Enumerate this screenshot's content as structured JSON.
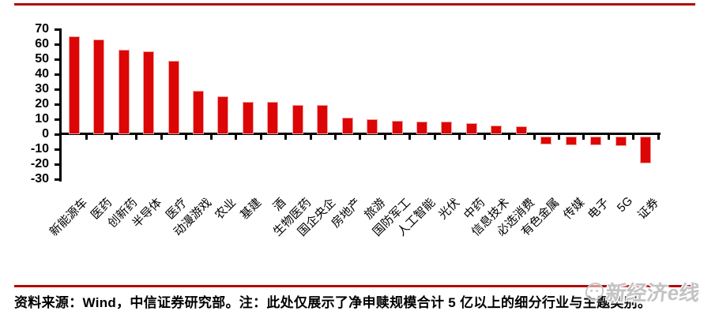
{
  "page": {
    "background": "#ffffff"
  },
  "rules": {
    "color": "#b00807"
  },
  "chart_data": {
    "type": "bar",
    "title": "",
    "xlabel": "",
    "ylabel": "",
    "categories": [
      "新能源车",
      "医药",
      "创新药",
      "半导体",
      "医疗",
      "动漫游戏",
      "农业",
      "基建",
      "酒",
      "生物医药",
      "国企央企",
      "房地产",
      "旅游",
      "国防军工",
      "人工智能",
      "光伏",
      "中药",
      "信息技术",
      "必选消费",
      "有色金属",
      "传媒",
      "电子",
      "5G",
      "证券"
    ],
    "values": [
      65,
      63,
      56,
      55,
      49,
      29,
      25,
      21.5,
      21.5,
      19.5,
      19.5,
      11,
      10,
      9,
      8.5,
      8.5,
      7.5,
      6,
      5,
      -5,
      -6,
      -6,
      -6.5,
      -18
    ],
    "ylim": [
      -30,
      70
    ],
    "yticks": [
      70,
      60,
      50,
      40,
      30,
      20,
      10,
      0,
      -10,
      -20,
      -30
    ],
    "grid": false,
    "legend": null,
    "bar_color": "#dc0606",
    "bar_edge_color": "#f4a3a0",
    "axis_color": "#000000",
    "tick_label_rotation_deg": 45
  },
  "footer": {
    "source_note": "资料来源：Wind，中信证券研究部。注：此处仅展示了净申赎规模合计 5 亿以上的细分行业与主题类别。"
  },
  "watermark": {
    "text": "新经济e线",
    "icon": "smiley-circle-icon",
    "color": "#c3c3c3"
  }
}
